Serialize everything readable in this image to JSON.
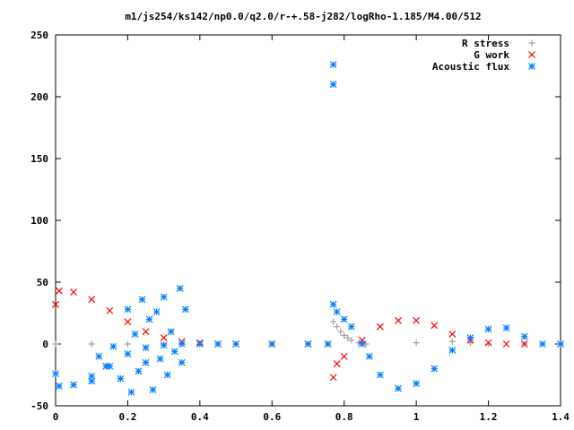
{
  "chart_data": {
    "type": "scatter",
    "title": "m1/js254/ks142/np0.0/q2.0/r-+.58-j282/logRho-1.185/M4.00/512",
    "xlim": [
      0,
      1.4
    ],
    "ylim": [
      -50,
      250
    ],
    "x_ticks": [
      "0",
      "0.2",
      "0.4",
      "0.6",
      "0.8",
      "1",
      "1.2",
      "1.4"
    ],
    "y_ticks": [
      "-50",
      "0",
      "50",
      "100",
      "150",
      "200",
      "250"
    ],
    "grid": false,
    "legend_position": "top-right",
    "series": [
      {
        "name": "R stress",
        "marker": "plus",
        "color": "#a0a0a0",
        "points": [
          [
            0.0,
            0
          ],
          [
            0.1,
            0
          ],
          [
            0.2,
            0
          ],
          [
            0.3,
            0
          ],
          [
            0.4,
            0
          ],
          [
            0.5,
            0
          ],
          [
            0.6,
            0
          ],
          [
            0.7,
            0
          ],
          [
            0.755,
            0
          ],
          [
            0.77,
            18
          ],
          [
            0.78,
            14
          ],
          [
            0.79,
            10
          ],
          [
            0.8,
            7
          ],
          [
            0.81,
            5
          ],
          [
            0.82,
            3
          ],
          [
            0.84,
            1
          ],
          [
            0.86,
            0
          ],
          [
            1.0,
            1
          ],
          [
            1.1,
            2
          ],
          [
            1.15,
            1
          ],
          [
            1.2,
            0
          ],
          [
            1.3,
            0
          ],
          [
            1.4,
            0
          ]
        ]
      },
      {
        "name": "G work",
        "marker": "cross",
        "color": "#ff0000",
        "points": [
          [
            0.0,
            32
          ],
          [
            0.01,
            43
          ],
          [
            0.05,
            42
          ],
          [
            0.1,
            36
          ],
          [
            0.15,
            27
          ],
          [
            0.2,
            18
          ],
          [
            0.25,
            10
          ],
          [
            0.3,
            5
          ],
          [
            0.35,
            2
          ],
          [
            0.4,
            1
          ],
          [
            0.45,
            0
          ],
          [
            0.5,
            0
          ],
          [
            0.6,
            0
          ],
          [
            0.7,
            0
          ],
          [
            0.755,
            0
          ],
          [
            0.77,
            -27
          ],
          [
            0.78,
            -16
          ],
          [
            0.8,
            -10
          ],
          [
            0.85,
            3
          ],
          [
            0.9,
            14
          ],
          [
            0.95,
            19
          ],
          [
            1.0,
            19
          ],
          [
            1.05,
            15
          ],
          [
            1.1,
            8
          ],
          [
            1.15,
            3
          ],
          [
            1.2,
            1
          ],
          [
            1.25,
            0
          ],
          [
            1.3,
            0
          ],
          [
            1.4,
            0
          ]
        ]
      },
      {
        "name": "Acoustic flux",
        "marker": "asterisk",
        "color": "#0080ff",
        "points": [
          [
            0.0,
            -24
          ],
          [
            0.01,
            -34
          ],
          [
            0.05,
            -33
          ],
          [
            0.1,
            -30
          ],
          [
            0.15,
            -18
          ],
          [
            0.2,
            -8
          ],
          [
            0.25,
            -3
          ],
          [
            0.3,
            -1
          ],
          [
            0.35,
            0
          ],
          [
            0.4,
            0
          ],
          [
            0.45,
            0
          ],
          [
            0.5,
            0
          ],
          [
            0.6,
            0
          ],
          [
            0.7,
            0
          ],
          [
            0.755,
            0
          ],
          [
            0.1,
            -26
          ],
          [
            0.12,
            -10
          ],
          [
            0.14,
            -18
          ],
          [
            0.16,
            -2
          ],
          [
            0.18,
            -28
          ],
          [
            0.2,
            28
          ],
          [
            0.21,
            -39
          ],
          [
            0.22,
            8
          ],
          [
            0.23,
            -22
          ],
          [
            0.24,
            36
          ],
          [
            0.25,
            -15
          ],
          [
            0.26,
            20
          ],
          [
            0.27,
            -37
          ],
          [
            0.28,
            26
          ],
          [
            0.29,
            -12
          ],
          [
            0.3,
            38
          ],
          [
            0.31,
            -25
          ],
          [
            0.32,
            10
          ],
          [
            0.33,
            -6
          ],
          [
            0.345,
            45
          ],
          [
            0.35,
            -15
          ],
          [
            0.36,
            28
          ],
          [
            0.77,
            210
          ],
          [
            0.77,
            226
          ],
          [
            0.77,
            32
          ],
          [
            0.78,
            26
          ],
          [
            0.8,
            20
          ],
          [
            0.82,
            14
          ],
          [
            0.85,
            0
          ],
          [
            0.87,
            -10
          ],
          [
            0.9,
            -25
          ],
          [
            0.95,
            -36
          ],
          [
            1.0,
            -32
          ],
          [
            1.05,
            -20
          ],
          [
            1.1,
            -5
          ],
          [
            1.15,
            5
          ],
          [
            1.2,
            12
          ],
          [
            1.25,
            13
          ],
          [
            1.3,
            6
          ],
          [
            1.35,
            0
          ],
          [
            1.4,
            0
          ]
        ]
      }
    ]
  }
}
